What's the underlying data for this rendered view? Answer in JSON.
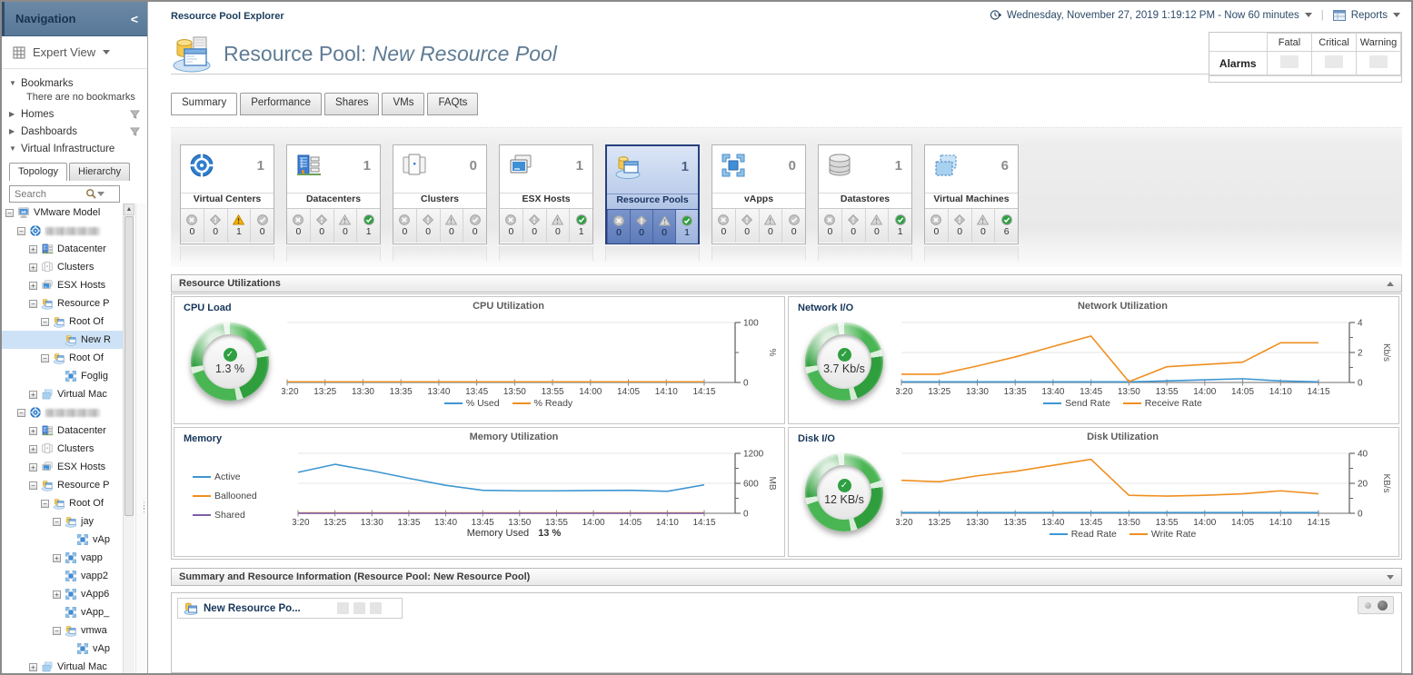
{
  "sidebar": {
    "title": "Navigation",
    "collapse_glyph": "<",
    "view_selector": "Expert View",
    "sections": [
      {
        "label": "Bookmarks",
        "state": "expanded",
        "filter": false
      },
      {
        "label": "Homes",
        "state": "collapsed",
        "filter": true
      },
      {
        "label": "Dashboards",
        "state": "collapsed",
        "filter": true
      },
      {
        "label": "Virtual Infrastructure",
        "state": "expanded",
        "filter": false
      }
    ],
    "bookmarks_note": "There are no bookmarks",
    "vi_tabs": [
      {
        "label": "Topology",
        "active": true
      },
      {
        "label": "Hierarchy",
        "active": false
      }
    ],
    "search_placeholder": "Search",
    "tree": [
      {
        "depth": 0,
        "expander": "minus",
        "icon": "vmware-model",
        "label": "VMware Model"
      },
      {
        "depth": 1,
        "expander": "minus",
        "icon": "vcenter",
        "label": "",
        "redacted": true
      },
      {
        "depth": 2,
        "expander": "plus",
        "icon": "datacenter",
        "label": "Datacenter"
      },
      {
        "depth": 2,
        "expander": "plus",
        "icon": "cluster",
        "label": "Clusters"
      },
      {
        "depth": 2,
        "expander": "plus",
        "icon": "esx-host",
        "label": "ESX Hosts"
      },
      {
        "depth": 2,
        "expander": "minus",
        "icon": "resource-pool",
        "label": "Resource P"
      },
      {
        "depth": 3,
        "expander": "minus",
        "icon": "resource-pool",
        "label": "Root Of"
      },
      {
        "depth": 4,
        "expander": "none",
        "icon": "resource-pool",
        "label": "New R",
        "selected": true
      },
      {
        "depth": 3,
        "expander": "minus",
        "icon": "resource-pool",
        "label": "Root Of"
      },
      {
        "depth": 4,
        "expander": "none",
        "icon": "vapp",
        "label": "Foglig"
      },
      {
        "depth": 2,
        "expander": "plus",
        "icon": "virtual-machine",
        "label": "Virtual Mac"
      },
      {
        "depth": 1,
        "expander": "minus",
        "icon": "vcenter",
        "label": "",
        "redacted": true
      },
      {
        "depth": 2,
        "expander": "plus",
        "icon": "datacenter",
        "label": "Datacenter"
      },
      {
        "depth": 2,
        "expander": "plus",
        "icon": "cluster",
        "label": "Clusters"
      },
      {
        "depth": 2,
        "expander": "plus",
        "icon": "esx-host",
        "label": "ESX Hosts"
      },
      {
        "depth": 2,
        "expander": "minus",
        "icon": "resource-pool",
        "label": "Resource P"
      },
      {
        "depth": 3,
        "expander": "minus",
        "icon": "resource-pool",
        "label": "Root Of"
      },
      {
        "depth": 4,
        "expander": "minus",
        "icon": "resource-pool",
        "label": "jay"
      },
      {
        "depth": 5,
        "expander": "none",
        "icon": "vapp",
        "label": "vAp"
      },
      {
        "depth": 4,
        "expander": "plus",
        "icon": "vapp",
        "label": "vapp"
      },
      {
        "depth": 4,
        "expander": "none",
        "icon": "vapp",
        "label": "vapp2"
      },
      {
        "depth": 4,
        "expander": "plus",
        "icon": "vapp",
        "label": "vApp6"
      },
      {
        "depth": 4,
        "expander": "none",
        "icon": "vapp",
        "label": "vApp_"
      },
      {
        "depth": 4,
        "expander": "minus",
        "icon": "resource-pool",
        "label": "vmwa"
      },
      {
        "depth": 5,
        "expander": "none",
        "icon": "vapp",
        "label": "vAp"
      },
      {
        "depth": 2,
        "expander": "plus",
        "icon": "virtual-machine",
        "label": "Virtual Mac"
      }
    ]
  },
  "header": {
    "breadcrumb": "Resource Pool Explorer",
    "title_prefix": "Resource Pool: ",
    "title_name": "New Resource Pool",
    "timestamp": "Wednesday, November 27, 2019 1:19:12 PM - Now 60 minutes",
    "reports_label": "Reports"
  },
  "alarms_table": {
    "row_label": "Alarms",
    "columns": [
      "Fatal",
      "Critical",
      "Warning"
    ]
  },
  "page_tabs": [
    {
      "label": "Summary",
      "active": true
    },
    {
      "label": "Performance",
      "active": false
    },
    {
      "label": "Shares",
      "active": false
    },
    {
      "label": "VMs",
      "active": false
    },
    {
      "label": "FAQts",
      "active": false
    }
  ],
  "tiles": [
    {
      "name": "Virtual Centers",
      "icon": "vcenter",
      "count": 1,
      "alarms": [
        0,
        0,
        1,
        0
      ],
      "active_index": 2,
      "selected": false
    },
    {
      "name": "Datacenters",
      "icon": "datacenter",
      "count": 1,
      "alarms": [
        0,
        0,
        0,
        1
      ],
      "active_index": 3,
      "selected": false
    },
    {
      "name": "Clusters",
      "icon": "cluster",
      "count": 0,
      "alarms": [
        0,
        0,
        0,
        0
      ],
      "active_index": -1,
      "selected": false
    },
    {
      "name": "ESX Hosts",
      "icon": "esx-host",
      "count": 1,
      "alarms": [
        0,
        0,
        0,
        1
      ],
      "active_index": 3,
      "selected": false
    },
    {
      "name": "Resource Pools",
      "icon": "resource-pool",
      "count": 1,
      "alarms": [
        0,
        0,
        0,
        1
      ],
      "active_index": 3,
      "selected": true
    },
    {
      "name": "vApps",
      "icon": "vapp",
      "count": 0,
      "alarms": [
        0,
        0,
        0,
        0
      ],
      "active_index": -1,
      "selected": false
    },
    {
      "name": "Datastores",
      "icon": "datastore",
      "count": 1,
      "alarms": [
        0,
        0,
        0,
        1
      ],
      "active_index": 3,
      "selected": false
    },
    {
      "name": "Virtual Machines",
      "icon": "virtual-machine",
      "count": 6,
      "alarms": [
        0,
        0,
        0,
        6
      ],
      "active_index": 3,
      "selected": false
    }
  ],
  "sections": {
    "resource_utilizations": "Resource Utilizations",
    "summary_info": "Summary and Resource Information (Resource Pool: New Resource Pool)"
  },
  "panels": {
    "cpu": {
      "label": "CPU Load",
      "gauge_value": "1.3 %",
      "status": "normal"
    },
    "network": {
      "label": "Network I/O",
      "gauge_value": "3.7 Kb/s",
      "status": "normal"
    },
    "memory": {
      "label": "Memory",
      "footer_label": "Memory Used",
      "footer_value": "13 %"
    },
    "disk": {
      "label": "Disk I/O",
      "gauge_value": "12 KB/s",
      "status": "normal"
    }
  },
  "bottom": {
    "portlet_title": "New Resource Po..."
  },
  "chart_data": [
    {
      "id": "cpu",
      "type": "line",
      "title": "CPU Utilization",
      "x": [
        "13:20",
        "13:25",
        "13:30",
        "13:35",
        "13:40",
        "13:45",
        "13:50",
        "13:55",
        "14:00",
        "14:05",
        "14:10",
        "14:15"
      ],
      "ylim": [
        0,
        100
      ],
      "yticks": [
        0,
        100
      ],
      "yminor": [
        50
      ],
      "ylabel": "%",
      "grid": true,
      "legend_position": "bottom",
      "series": [
        {
          "name": "% Used",
          "color": "#3e96d2",
          "values": [
            0.4,
            0.4,
            0.4,
            0.4,
            0.4,
            0.4,
            0.4,
            0.4,
            0.4,
            0.4,
            0.4,
            0.4
          ]
        },
        {
          "name": "% Ready",
          "color": "#ef8f20",
          "values": [
            1.0,
            1.0,
            1.0,
            1.0,
            1.0,
            1.0,
            1.0,
            1.0,
            1.0,
            1.0,
            1.0,
            1.0
          ]
        }
      ]
    },
    {
      "id": "network",
      "type": "line",
      "title": "Network Utilization",
      "x": [
        "13:20",
        "13:25",
        "13:30",
        "13:35",
        "13:40",
        "13:45",
        "13:50",
        "13:55",
        "14:00",
        "14:05",
        "14:10",
        "14:15"
      ],
      "ylim": [
        0,
        4
      ],
      "yticks": [
        0,
        2,
        4
      ],
      "yminor": [
        1,
        3
      ],
      "ylabel": "Kb/s",
      "grid": true,
      "legend_position": "bottom",
      "series": [
        {
          "name": "Send Rate",
          "color": "#3e96d2",
          "values": [
            0.04,
            0.04,
            0.04,
            0.04,
            0.04,
            0.04,
            0.04,
            0.1,
            0.18,
            0.25,
            0.1,
            0.04
          ]
        },
        {
          "name": "Receive Rate",
          "color": "#ef8f20",
          "values": [
            0.55,
            0.55,
            1.1,
            1.7,
            2.4,
            3.1,
            0.05,
            1.05,
            1.2,
            1.35,
            2.65,
            2.65
          ]
        }
      ]
    },
    {
      "id": "memory",
      "type": "line",
      "title": "Memory Utilization",
      "x": [
        "13:20",
        "13:25",
        "13:30",
        "13:35",
        "13:40",
        "13:45",
        "13:50",
        "13:55",
        "14:00",
        "14:05",
        "14:10",
        "14:15"
      ],
      "ylim": [
        0,
        1200
      ],
      "yticks": [
        0,
        600,
        1200
      ],
      "yminor": [
        300,
        900
      ],
      "ylabel": "MB",
      "grid": true,
      "legend_position": "left",
      "series": [
        {
          "name": "Active",
          "color": "#3e96d2",
          "values": [
            820,
            980,
            850,
            700,
            560,
            460,
            450,
            450,
            455,
            460,
            440,
            570
          ]
        },
        {
          "name": "Ballooned",
          "color": "#ef8f20",
          "values": [
            8,
            8,
            8,
            8,
            8,
            8,
            8,
            8,
            8,
            8,
            8,
            8
          ]
        },
        {
          "name": "Shared",
          "color": "#7e5fa5",
          "values": [
            2,
            2,
            2,
            2,
            2,
            2,
            2,
            2,
            2,
            2,
            2,
            2
          ]
        }
      ]
    },
    {
      "id": "disk",
      "type": "line",
      "title": "Disk Utilization",
      "x": [
        "13:20",
        "13:25",
        "13:30",
        "13:35",
        "13:40",
        "13:45",
        "13:50",
        "13:55",
        "14:00",
        "14:05",
        "14:10",
        "14:15"
      ],
      "ylim": [
        0,
        40
      ],
      "yticks": [
        0,
        20,
        40
      ],
      "yminor": [
        10,
        30
      ],
      "ylabel": "KB/s",
      "grid": true,
      "legend_position": "bottom",
      "series": [
        {
          "name": "Read Rate",
          "color": "#3e96d2",
          "values": [
            0.5,
            0.5,
            0.5,
            0.5,
            0.5,
            0.5,
            0.5,
            0.5,
            0.5,
            0.5,
            0.5,
            0.5
          ]
        },
        {
          "name": "Write Rate",
          "color": "#ef8f20",
          "values": [
            22,
            21,
            25,
            28,
            32,
            36,
            12,
            11.5,
            12,
            13,
            15,
            13
          ]
        }
      ]
    }
  ]
}
